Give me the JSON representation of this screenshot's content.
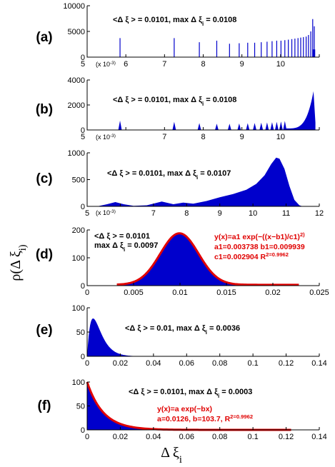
{
  "figure": {
    "ylabel": "ρ(Δ ξ_i)",
    "xlabel": "Δ ξ_i"
  },
  "chart_data": [
    {
      "id": "a",
      "label": "(a)",
      "type": "bar",
      "stat_text": "<Δ ξ > = 0.0101,  max Δ ξ_i = 0.0108",
      "xlim": [
        5,
        11
      ],
      "ylim": [
        0,
        10000
      ],
      "xticks": [
        "5",
        "6",
        "7",
        "8",
        "9",
        "10",
        "11"
      ],
      "yticks": [
        "0",
        "5000",
        "10000"
      ],
      "xticks_visible": [
        false,
        true,
        true,
        true,
        true,
        true,
        false
      ],
      "x_multiplier": "(x 10^-3)",
      "shape": "spikes",
      "peaks": [
        {
          "x": 5.85,
          "y": 3700
        },
        {
          "x": 7.25,
          "y": 3700
        },
        {
          "x": 7.9,
          "y": 2900
        },
        {
          "x": 8.35,
          "y": 3200
        },
        {
          "x": 8.68,
          "y": 2600
        },
        {
          "x": 8.93,
          "y": 2700
        },
        {
          "x": 9.15,
          "y": 2800
        },
        {
          "x": 9.33,
          "y": 2800
        },
        {
          "x": 9.5,
          "y": 2900
        },
        {
          "x": 9.65,
          "y": 3000
        },
        {
          "x": 9.78,
          "y": 3100
        },
        {
          "x": 9.9,
          "y": 3200
        },
        {
          "x": 10.01,
          "y": 3200
        },
        {
          "x": 10.11,
          "y": 3300
        },
        {
          "x": 10.2,
          "y": 3400
        },
        {
          "x": 10.29,
          "y": 3500
        },
        {
          "x": 10.37,
          "y": 3600
        },
        {
          "x": 10.45,
          "y": 3700
        },
        {
          "x": 10.52,
          "y": 3800
        },
        {
          "x": 10.59,
          "y": 3900
        },
        {
          "x": 10.66,
          "y": 4000
        },
        {
          "x": 10.72,
          "y": 4300
        },
        {
          "x": 10.78,
          "y": 5000
        },
        {
          "x": 10.83,
          "y": 7400
        },
        {
          "x": 10.87,
          "y": 6000
        }
      ],
      "color": "#0000cc"
    },
    {
      "id": "b",
      "label": "(b)",
      "type": "area",
      "stat_text": "<Δ ξ > = 0.0101,  max Δ ξ_i = 0.0108",
      "xlim": [
        5,
        11
      ],
      "ylim": [
        0,
        4000
      ],
      "xticks": [
        "5",
        "6",
        "7",
        "8",
        "9",
        "10",
        "11"
      ],
      "yticks": [
        "0",
        "2000",
        "4000"
      ],
      "xticks_visible": [
        false,
        false,
        true,
        true,
        true,
        true,
        false
      ],
      "x_multiplier": "(x 10^-3)",
      "shape": "narrow-peaks",
      "peaks": [
        {
          "x": 5.85,
          "y": 750
        },
        {
          "x": 7.25,
          "y": 650
        },
        {
          "x": 7.9,
          "y": 550
        },
        {
          "x": 8.35,
          "y": 500
        },
        {
          "x": 8.68,
          "y": 500
        },
        {
          "x": 8.93,
          "y": 520
        },
        {
          "x": 9.15,
          "y": 540
        },
        {
          "x": 9.33,
          "y": 560
        },
        {
          "x": 9.5,
          "y": 580
        },
        {
          "x": 9.65,
          "y": 600
        },
        {
          "x": 9.78,
          "y": 620
        },
        {
          "x": 9.9,
          "y": 650
        },
        {
          "x": 10.01,
          "y": 680
        },
        {
          "x": 10.11,
          "y": 720
        }
      ],
      "tail": {
        "start": 10.1,
        "end": 10.9,
        "peak_x": 10.85,
        "peak_y": 3100
      },
      "color": "#0000cc"
    },
    {
      "id": "c",
      "label": "(c)",
      "type": "area",
      "stat_text": "<Δ ξ > = 0.0101,  max Δ ξ_i = 0.0107",
      "xlim": [
        5,
        12
      ],
      "ylim": [
        0,
        1000
      ],
      "xticks": [
        "5",
        "6",
        "7",
        "8",
        "9",
        "10",
        "11",
        "12"
      ],
      "yticks": [
        "0",
        "500",
        "1000"
      ],
      "xticks_visible": [
        true,
        false,
        true,
        true,
        true,
        true,
        true,
        true
      ],
      "x_multiplier": "(x 10^-3)",
      "shape": "smooth",
      "curve": [
        [
          5.3,
          0
        ],
        [
          5.6,
          40
        ],
        [
          5.85,
          80
        ],
        [
          6.1,
          40
        ],
        [
          6.4,
          10
        ],
        [
          6.8,
          20
        ],
        [
          7.25,
          90
        ],
        [
          7.6,
          40
        ],
        [
          7.9,
          70
        ],
        [
          8.2,
          50
        ],
        [
          8.6,
          100
        ],
        [
          9.0,
          170
        ],
        [
          9.4,
          230
        ],
        [
          9.8,
          310
        ],
        [
          10.1,
          420
        ],
        [
          10.35,
          580
        ],
        [
          10.55,
          790
        ],
        [
          10.7,
          910
        ],
        [
          10.8,
          890
        ],
        [
          10.95,
          700
        ],
        [
          11.1,
          380
        ],
        [
          11.25,
          120
        ],
        [
          11.4,
          20
        ],
        [
          11.5,
          0
        ]
      ],
      "color": "#0000cc"
    },
    {
      "id": "d",
      "label": "(d)",
      "type": "area",
      "stat_text_line1": "<Δ ξ > = 0.0101",
      "stat_text_line2": "max Δ ξ_i = 0.0097",
      "xlim": [
        0,
        0.025
      ],
      "ylim": [
        0,
        200
      ],
      "xticks": [
        "0",
        "0.005",
        "0.01",
        "0.015",
        "0.02",
        "0.025"
      ],
      "yticks": [
        "0",
        "100",
        "200"
      ],
      "fit_lines": [
        "y(x)=a1 exp(−((x−b1)/c1)^2)",
        "a1=0.003738  b1=0.009939",
        "c1=0.002904  R^2=0.9962"
      ],
      "gaussian": {
        "amp": 185,
        "center": 0.009939,
        "width": 0.002904,
        "xmin": 0.0032,
        "xmax": 0.0228
      },
      "color": "#0000cc",
      "fit_color": "#e00000"
    },
    {
      "id": "e",
      "label": "(e)",
      "type": "area",
      "stat_text": "<Δ ξ > = 0.01,  max Δ ξ_i = 0.0036",
      "xlim": [
        0,
        0.14
      ],
      "ylim": [
        0,
        100
      ],
      "xticks": [
        "0",
        "0.02",
        "0.04",
        "0.06",
        "0.08",
        "0.1",
        "0.12",
        "0.14"
      ],
      "yticks": [
        "0",
        "50",
        "100"
      ],
      "skew": {
        "peak_x": 0.0036,
        "peak_y": 78,
        "end_x": 0.045
      },
      "color": "#0000cc"
    },
    {
      "id": "f",
      "label": "(f)",
      "type": "area",
      "stat_text": "<Δ ξ > = 0.0101, max Δ ξ_i = 0.0003",
      "xlim": [
        0,
        0.14
      ],
      "ylim": [
        0,
        100
      ],
      "xticks": [
        "0",
        "0.02",
        "0.04",
        "0.06",
        "0.08",
        "0.1",
        "0.12",
        "0.14"
      ],
      "yticks": [
        "0",
        "50",
        "100"
      ],
      "fit_lines": [
        "y(x)=a exp(−bx)",
        "a=0.0126, b=103.7,  R^2=0.9962"
      ],
      "exp": {
        "a": 100,
        "b": 103.7,
        "xmax": 0.123
      },
      "color": "#0000cc",
      "fit_color": "#e00000"
    }
  ]
}
